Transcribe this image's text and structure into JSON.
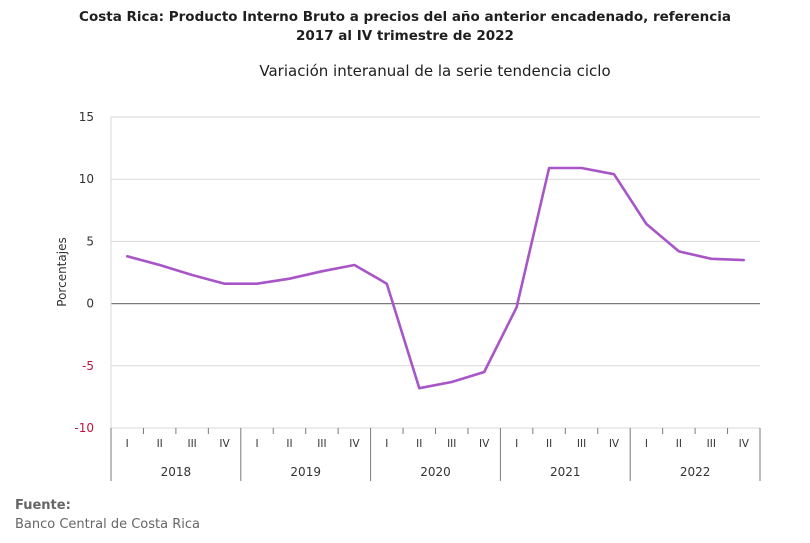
{
  "source_label": "Fuente:",
  "source_text": "Banco Central de Costa Rica",
  "chart_data": {
    "type": "line",
    "title": "Costa Rica: Producto Interno Bruto a precios del año anterior encadenado, referencia 2017 al IV trimestre de 2022",
    "subtitle": "Variación interanual de la serie tendencia ciclo",
    "ylabel": "Porcentajes",
    "ylim": [
      -10,
      15
    ],
    "yticks": [
      15,
      10,
      5,
      0,
      -5,
      -10
    ],
    "grid": true,
    "years": [
      "2018",
      "2019",
      "2020",
      "2021",
      "2022"
    ],
    "quarters": [
      "I",
      "II",
      "III",
      "IV"
    ],
    "color": "#a855c8",
    "values": [
      3.8,
      3.1,
      2.3,
      1.6,
      1.6,
      2.0,
      2.6,
      3.1,
      1.6,
      -6.8,
      -6.3,
      -5.5,
      -0.3,
      10.9,
      10.9,
      10.4,
      6.4,
      4.2,
      3.6,
      3.5
    ]
  }
}
